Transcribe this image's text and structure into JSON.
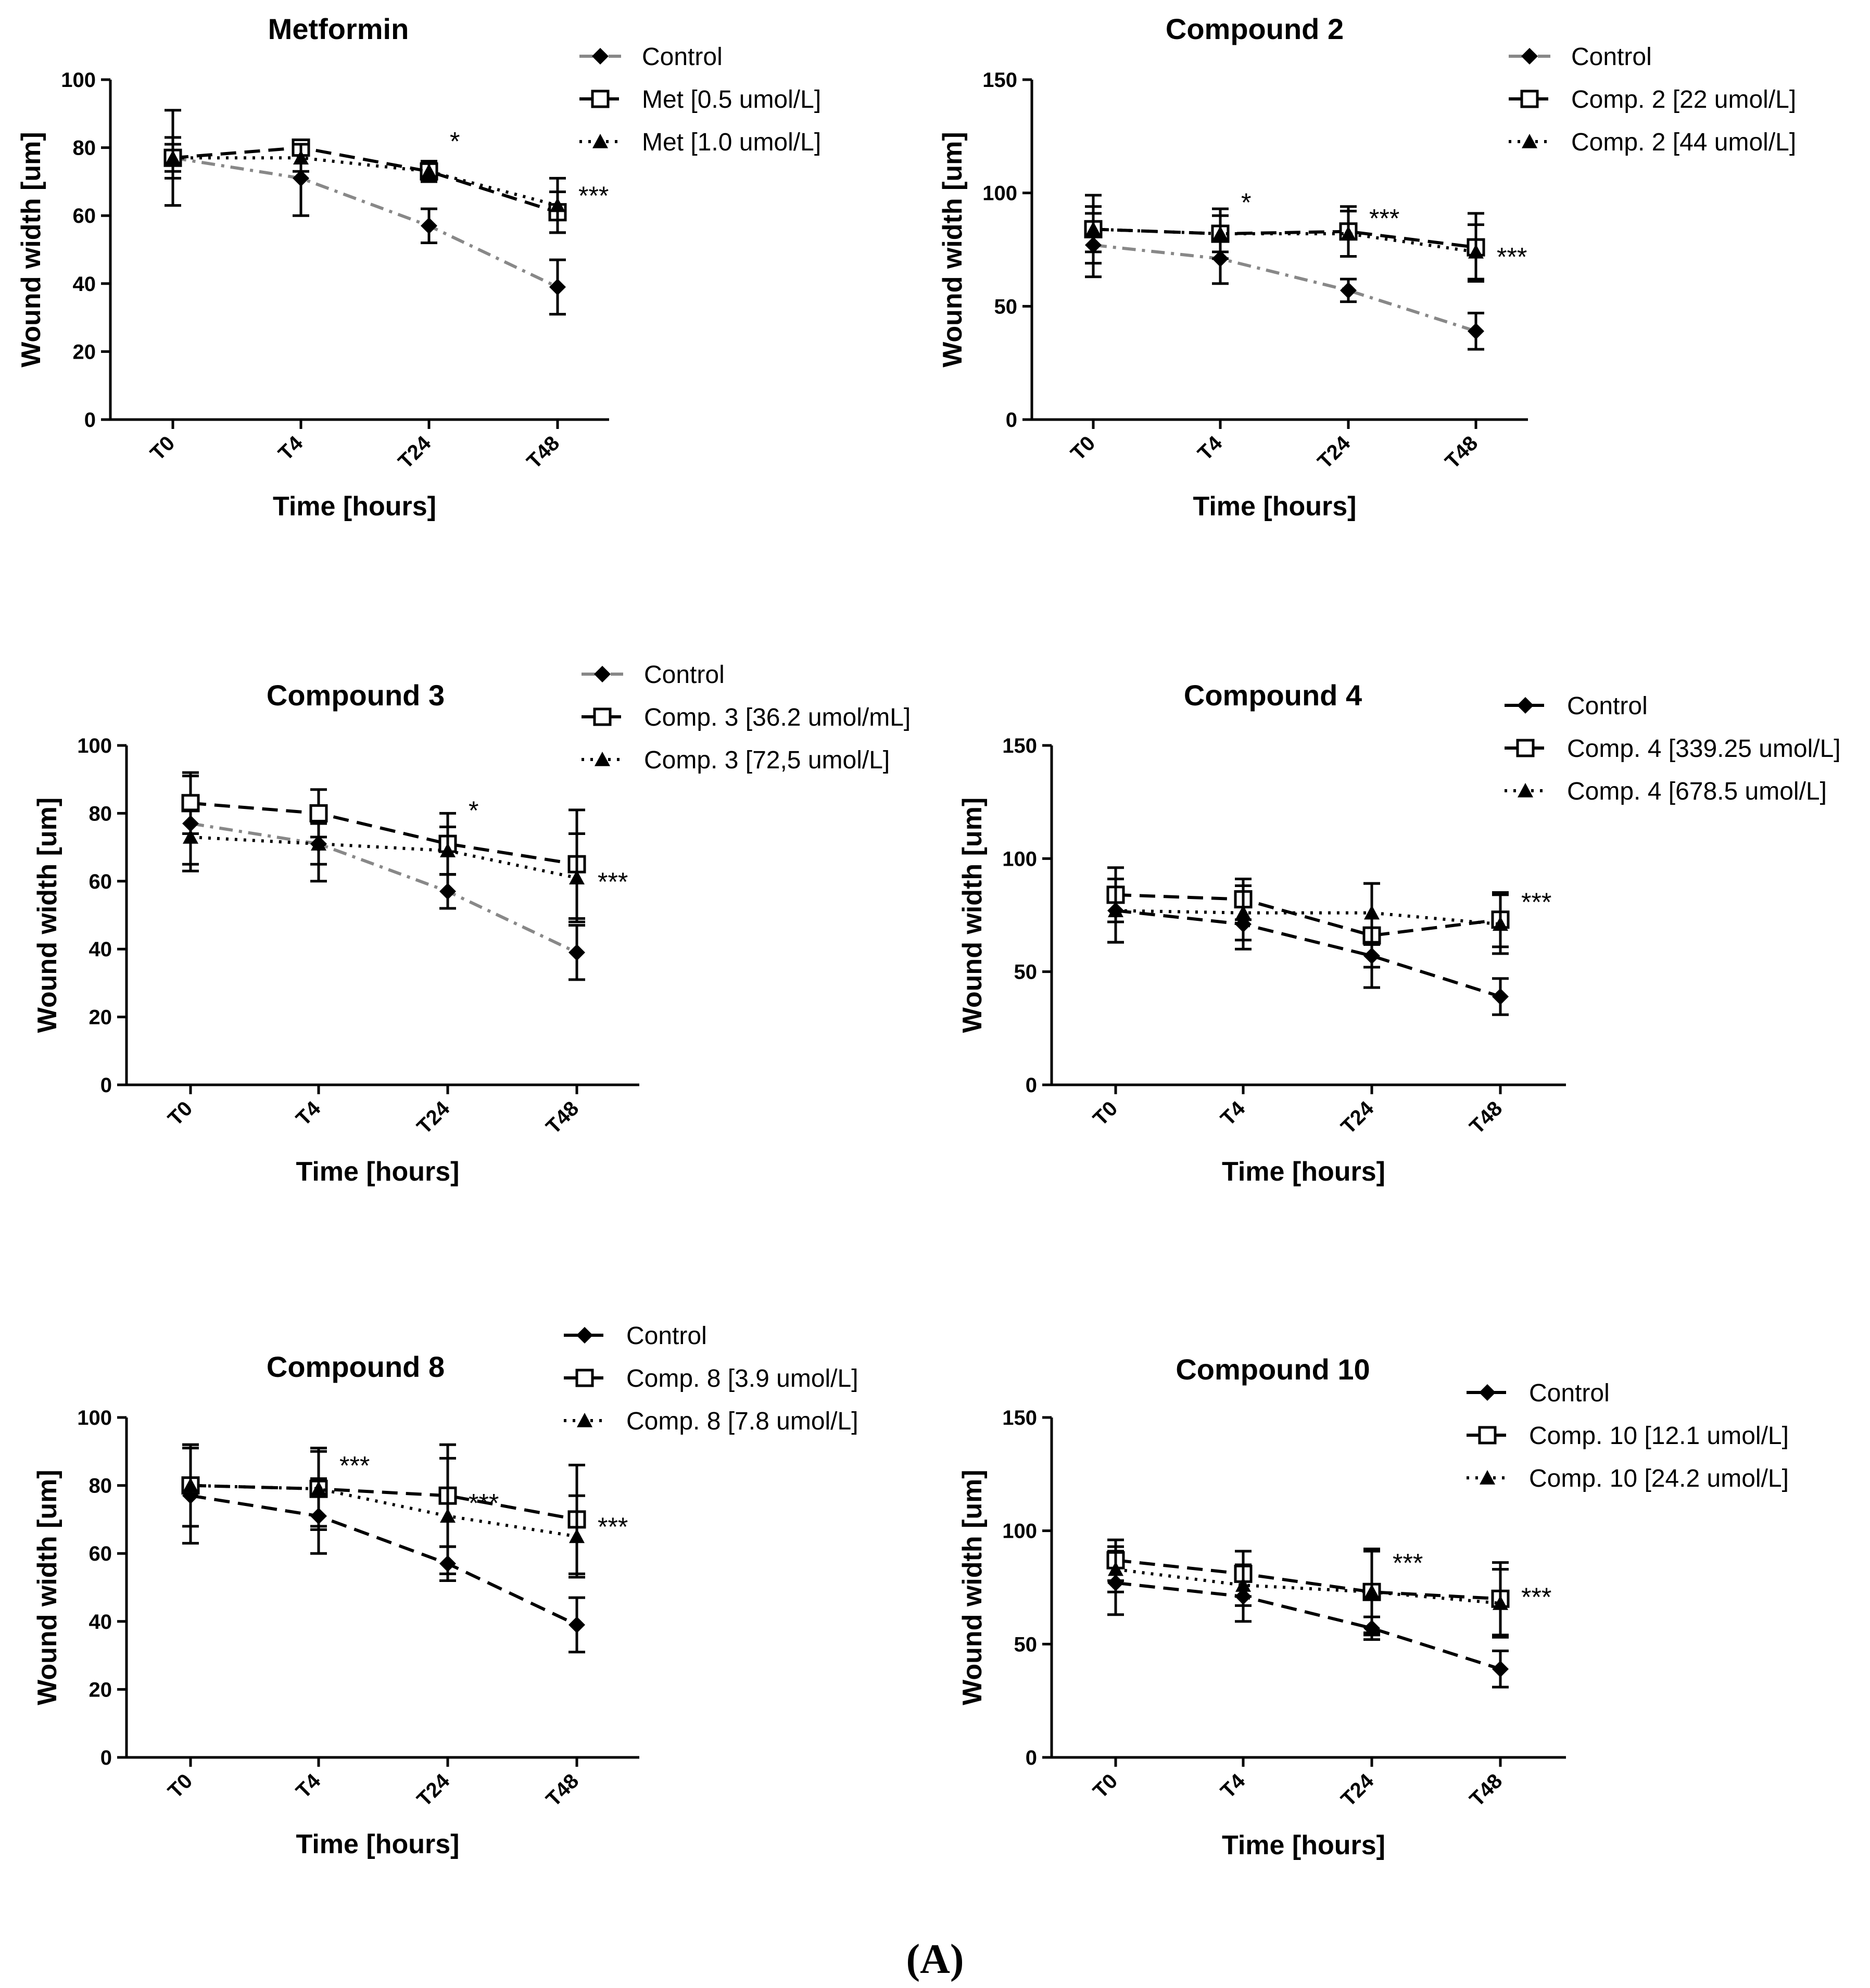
{
  "figure_label": "(A)",
  "chart_data": [
    {
      "type": "line",
      "title": "Metformin",
      "xlabel": "Time [hours]",
      "ylabel": "Wound width [um]",
      "categories": [
        "T0",
        "T4",
        "T24",
        "T48"
      ],
      "ylim": [
        0,
        100
      ],
      "yticks": [
        0,
        20,
        40,
        60,
        80,
        100
      ],
      "legend_position": "top-right",
      "series": [
        {
          "name": "Control",
          "values": [
            77,
            71,
            57,
            39
          ],
          "errors": [
            14,
            11,
            5,
            8
          ],
          "marker": "diamond",
          "line": "dash-dot",
          "color": "#888888"
        },
        {
          "name": "Met [0.5 umol/L]",
          "values": [
            77,
            80,
            73,
            61
          ],
          "errors": [
            4,
            2,
            3,
            6
          ],
          "marker": "square-open",
          "line": "dashed",
          "color": "#000000"
        },
        {
          "name": "Met [1.0 umol/L]",
          "values": [
            77,
            77,
            73,
            63
          ],
          "errors": [
            6,
            4,
            3,
            8
          ],
          "marker": "triangle",
          "line": "dotted",
          "color": "#000000"
        }
      ],
      "annotations": [
        {
          "text": "*",
          "x": "T24",
          "y": 82
        },
        {
          "text": "***",
          "x": "T48",
          "y": 66
        }
      ]
    },
    {
      "type": "line",
      "title": "Compound 2",
      "xlabel": "Time [hours]",
      "ylabel": "Wound width [um]",
      "categories": [
        "T0",
        "T4",
        "T24",
        "T48"
      ],
      "ylim": [
        0,
        150
      ],
      "yticks": [
        0,
        50,
        100,
        150
      ],
      "legend_position": "top-right",
      "series": [
        {
          "name": "Control",
          "values": [
            77,
            71,
            57,
            39
          ],
          "errors": [
            14,
            11,
            5,
            8
          ],
          "marker": "diamond",
          "line": "dash-dot",
          "color": "#888888"
        },
        {
          "name": "Comp. 2 [22 umol/L]",
          "values": [
            84,
            82,
            83,
            76
          ],
          "errors": [
            15,
            11,
            11,
            15
          ],
          "marker": "square-open",
          "line": "dashed",
          "color": "#000000"
        },
        {
          "name": "Comp. 2 [44 umol/L]",
          "values": [
            84,
            82,
            82,
            74
          ],
          "errors": [
            10,
            8,
            10,
            12
          ],
          "marker": "triangle",
          "line": "dotted",
          "color": "#000000"
        }
      ],
      "annotations": [
        {
          "text": "*",
          "x": "T4",
          "y": 96
        },
        {
          "text": "***",
          "x": "T24",
          "y": 89
        },
        {
          "text": "***",
          "x": "T48",
          "y": 72
        }
      ]
    },
    {
      "type": "line",
      "title": "Compound 3",
      "xlabel": "Time [hours]",
      "ylabel": "Wound width [um]",
      "categories": [
        "T0",
        "T4",
        "T24",
        "T48"
      ],
      "ylim": [
        0,
        100
      ],
      "yticks": [
        0,
        20,
        40,
        60,
        80,
        100
      ],
      "legend_position": "top-right",
      "series": [
        {
          "name": "Control",
          "values": [
            77,
            71,
            57,
            39
          ],
          "errors": [
            14,
            11,
            5,
            8
          ],
          "marker": "diamond",
          "line": "dash-dot",
          "color": "#888888"
        },
        {
          "name": "Comp. 3 [36.2 umol/mL]",
          "values": [
            83,
            80,
            71,
            65
          ],
          "errors": [
            9,
            7,
            9,
            16
          ],
          "marker": "square-open",
          "line": "dashed",
          "color": "#000000"
        },
        {
          "name": "Comp. 3 [72,5 umol/L]",
          "values": [
            73,
            71,
            69,
            61
          ],
          "errors": [
            8,
            6,
            7,
            13
          ],
          "marker": "triangle",
          "line": "dotted",
          "color": "#000000"
        }
      ],
      "annotations": [
        {
          "text": "*",
          "x": "T24",
          "y": 81
        },
        {
          "text": "***",
          "x": "T48",
          "y": 60
        }
      ]
    },
    {
      "type": "line",
      "title": "Compound 4",
      "xlabel": "Time [hours]",
      "ylabel": "Wound width [um]",
      "categories": [
        "T0",
        "T4",
        "T24",
        "T48"
      ],
      "ylim": [
        0,
        150
      ],
      "yticks": [
        0,
        50,
        100,
        150
      ],
      "legend_position": "top-right",
      "series": [
        {
          "name": "Control",
          "values": [
            77,
            71,
            57,
            39
          ],
          "errors": [
            14,
            11,
            5,
            8
          ],
          "marker": "diamond",
          "line": "dashed",
          "color": "#000000"
        },
        {
          "name": "Comp. 4 [339.25 umol/L]",
          "values": [
            84,
            82,
            66,
            73
          ],
          "errors": [
            12,
            9,
            23,
            12
          ],
          "marker": "square-open",
          "line": "dashed",
          "color": "#000000"
        },
        {
          "name": "Comp. 4 [678.5 umol/L]",
          "values": [
            77,
            76,
            76,
            71
          ],
          "errors": [
            14,
            12,
            13,
            13
          ],
          "marker": "triangle",
          "line": "dotted",
          "color": "#000000"
        }
      ],
      "annotations": [
        {
          "text": "***",
          "x": "T48",
          "y": 81
        }
      ]
    },
    {
      "type": "line",
      "title": "Compound 8",
      "xlabel": "Time [hours]",
      "ylabel": "Wound width [um]",
      "categories": [
        "T0",
        "T4",
        "T24",
        "T48"
      ],
      "ylim": [
        0,
        100
      ],
      "yticks": [
        0,
        20,
        40,
        60,
        80,
        100
      ],
      "legend_position": "top-right",
      "series": [
        {
          "name": "Control",
          "values": [
            77,
            71,
            57,
            39
          ],
          "errors": [
            14,
            11,
            5,
            8
          ],
          "marker": "diamond",
          "line": "dashed",
          "color": "#000000"
        },
        {
          "name": "Comp. 8 [3.9 umol/L]",
          "values": [
            80,
            79,
            77,
            70
          ],
          "errors": [
            12,
            12,
            15,
            16
          ],
          "marker": "square-open",
          "line": "dashed",
          "color": "#000000"
        },
        {
          "name": "Comp. 8 [7.8 umol/L]",
          "values": [
            80,
            79,
            71,
            65
          ],
          "errors": [
            12,
            11,
            17,
            12
          ],
          "marker": "triangle",
          "line": "dotted",
          "color": "#000000"
        }
      ],
      "annotations": [
        {
          "text": "***",
          "x": "T4",
          "y": 86
        },
        {
          "text": "***",
          "x": "T24",
          "y": 75
        },
        {
          "text": "***",
          "x": "T48",
          "y": 68
        }
      ]
    },
    {
      "type": "line",
      "title": "Compound 10",
      "xlabel": "Time [hours]",
      "ylabel": "Wound width [um]",
      "categories": [
        "T0",
        "T4",
        "T24",
        "T48"
      ],
      "ylim": [
        0,
        150
      ],
      "yticks": [
        0,
        50,
        100,
        150
      ],
      "legend_position": "top-right",
      "series": [
        {
          "name": "Control",
          "values": [
            77,
            71,
            57,
            39
          ],
          "errors": [
            14,
            11,
            5,
            8
          ],
          "marker": "diamond",
          "line": "dashed",
          "color": "#000000"
        },
        {
          "name": "Comp. 10 [12.1 umol/L]",
          "values": [
            87,
            81,
            73,
            70
          ],
          "errors": [
            9,
            10,
            19,
            16
          ],
          "marker": "square-open",
          "line": "dashed",
          "color": "#000000"
        },
        {
          "name": "Comp. 10 [24.2 umol/L]",
          "values": [
            83,
            76,
            73,
            68
          ],
          "errors": [
            10,
            9,
            18,
            15
          ],
          "marker": "triangle",
          "line": "dotted",
          "color": "#000000"
        }
      ],
      "annotations": [
        {
          "text": "***",
          "x": "T24",
          "y": 86
        },
        {
          "text": "***",
          "x": "T48",
          "y": 71
        }
      ]
    }
  ]
}
